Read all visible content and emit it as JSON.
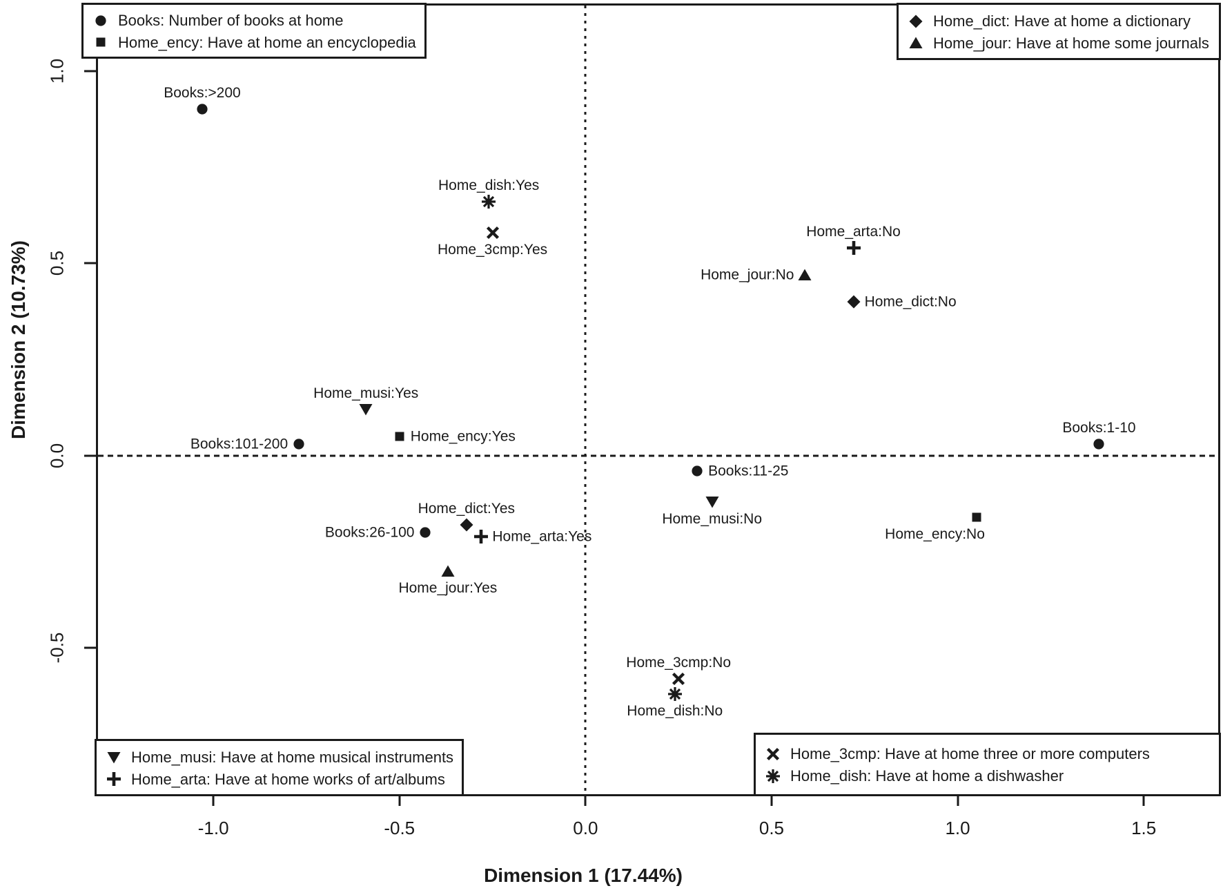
{
  "chart_data": {
    "type": "scatter",
    "title": "",
    "xlabel": "Dimension 1 (17.44%)",
    "ylabel": "Dimension 2 (10.73%)",
    "xlim": [
      -1.31,
      1.7
    ],
    "ylim": [
      -0.88,
      1.17
    ],
    "xticks": [
      "-1.0",
      "-0.5",
      "0.0",
      "0.5",
      "1.0",
      "1.5"
    ],
    "yticks": [
      "-0.5",
      "0.0",
      "0.5",
      "1.0"
    ],
    "grid": false,
    "reference_lines": [
      {
        "axis": "x",
        "value": 0,
        "style": "dotted"
      },
      {
        "axis": "y",
        "value": 0,
        "style": "dashed"
      }
    ],
    "points": [
      {
        "label": "Books:>200",
        "x": -1.03,
        "y": 0.9,
        "marker": "circle",
        "label_pos": "above"
      },
      {
        "label": "Home_dish:Yes",
        "x": -0.26,
        "y": 0.66,
        "marker": "star",
        "label_pos": "above"
      },
      {
        "label": "Home_3cmp:Yes",
        "x": -0.25,
        "y": 0.58,
        "marker": "x",
        "label_pos": "below"
      },
      {
        "label": "Home_arta:No",
        "x": 0.72,
        "y": 0.54,
        "marker": "plus",
        "label_pos": "above"
      },
      {
        "label": "Home_jour:No",
        "x": 0.59,
        "y": 0.47,
        "marker": "triangle-up",
        "label_pos": "left"
      },
      {
        "label": "Home_dict:No",
        "x": 0.72,
        "y": 0.4,
        "marker": "diamond",
        "label_pos": "right"
      },
      {
        "label": "Home_musi:Yes",
        "x": -0.59,
        "y": 0.12,
        "marker": "triangle-down",
        "label_pos": "above"
      },
      {
        "label": "Books:101-200",
        "x": -0.77,
        "y": 0.03,
        "marker": "circle",
        "label_pos": "left"
      },
      {
        "label": "Home_ency:Yes",
        "x": -0.5,
        "y": 0.05,
        "marker": "square",
        "label_pos": "right"
      },
      {
        "label": "Books:1-10",
        "x": 1.38,
        "y": 0.03,
        "marker": "circle",
        "label_pos": "above"
      },
      {
        "label": "Books:11-25",
        "x": 0.3,
        "y": -0.04,
        "marker": "circle",
        "label_pos": "right"
      },
      {
        "label": "Home_musi:No",
        "x": 0.34,
        "y": -0.12,
        "marker": "triangle-down",
        "label_pos": "below"
      },
      {
        "label": "Home_dict:Yes",
        "x": -0.32,
        "y": -0.18,
        "marker": "diamond",
        "label_pos": "above"
      },
      {
        "label": "Books:26-100",
        "x": -0.43,
        "y": -0.2,
        "marker": "circle",
        "label_pos": "left"
      },
      {
        "label": "Home_arta:Yes",
        "x": -0.28,
        "y": -0.21,
        "marker": "plus",
        "label_pos": "right"
      },
      {
        "label": "Home_ency:No",
        "x": 1.05,
        "y": -0.16,
        "marker": "square",
        "label_pos": "below-left"
      },
      {
        "label": "Home_jour:Yes",
        "x": -0.37,
        "y": -0.3,
        "marker": "triangle-up",
        "label_pos": "below"
      },
      {
        "label": "Home_3cmp:No",
        "x": 0.25,
        "y": -0.58,
        "marker": "x",
        "label_pos": "above"
      },
      {
        "label": "Home_dish:No",
        "x": 0.24,
        "y": -0.62,
        "marker": "star",
        "label_pos": "below"
      }
    ],
    "legends": [
      {
        "position": "top-left",
        "items": [
          {
            "marker": "circle",
            "text": "Books: Number of books at home"
          },
          {
            "marker": "square",
            "text": "Home_ency: Have at home an encyclopedia"
          }
        ]
      },
      {
        "position": "top-right",
        "items": [
          {
            "marker": "diamond",
            "text": "Home_dict: Have at home a dictionary"
          },
          {
            "marker": "triangle-up",
            "text": "Home_jour: Have at home some journals"
          }
        ]
      },
      {
        "position": "bottom-left",
        "items": [
          {
            "marker": "triangle-down",
            "text": "Home_musi: Have at home musical instruments"
          },
          {
            "marker": "plus",
            "text": "Home_arta: Have at home works of art/albums"
          }
        ]
      },
      {
        "position": "bottom-right",
        "items": [
          {
            "marker": "x",
            "text": "Home_3cmp: Have at home three or more computers"
          },
          {
            "marker": "star",
            "text": "Home_dish: Have at home a dishwasher"
          }
        ]
      }
    ]
  }
}
